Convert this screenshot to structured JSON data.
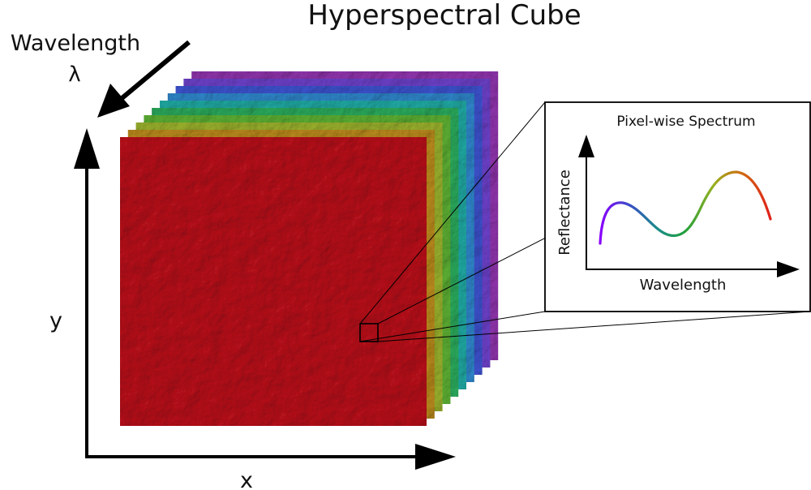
{
  "title": "Hyperspectral Cube",
  "axes": {
    "x_label": "x",
    "y_label": "y",
    "wavelength_label": "Wavelength",
    "wavelength_symbol": "λ"
  },
  "cube": {
    "layer_colors": [
      "#8c33a8",
      "#6a3fc4",
      "#3b50c8",
      "#2e82c4",
      "#20a49e",
      "#2aa55a",
      "#5aaa32",
      "#96ac2c",
      "#b5861c",
      "#b3122a"
    ],
    "front_color": "#b3121a"
  },
  "inset": {
    "title": "Pixel-wise Spectrum",
    "xlabel": "Wavelength",
    "ylabel": "Reflectance",
    "curve_colors": [
      "#8a00ff",
      "#3b4ac8",
      "#1a8c8c",
      "#22a03a",
      "#98b020",
      "#d06a10",
      "#e0201a"
    ]
  }
}
